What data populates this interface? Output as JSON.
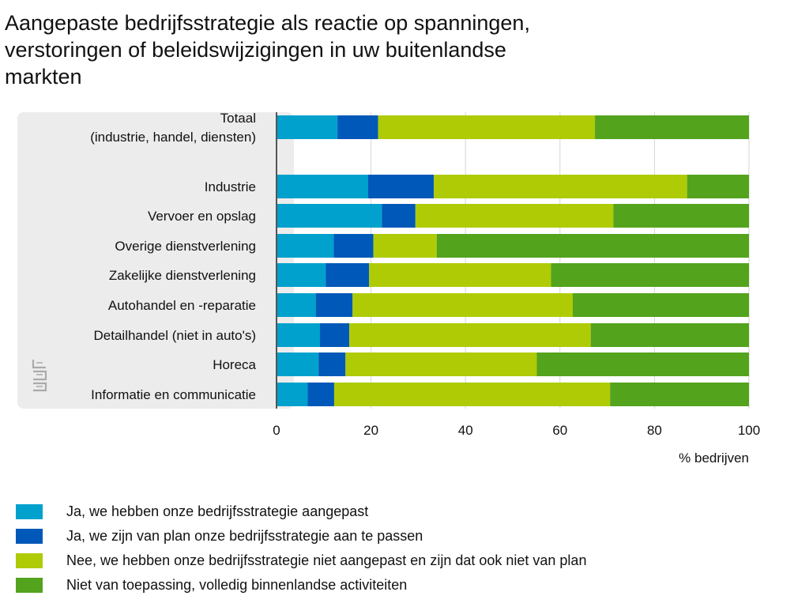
{
  "chart_data": {
    "type": "bar",
    "orientation": "horizontal",
    "stacked": true,
    "title": "Aangepaste bedrijfsstrategie als reactie op spanningen,\nverstoringen of beleidswijzigingen in uw buitenlandse\nmarkten",
    "xlabel": "% bedrijven",
    "ylabel": "",
    "xlim": [
      0,
      100
    ],
    "x_ticks": [
      0,
      20,
      40,
      60,
      80,
      100
    ],
    "grid": true,
    "legend_position": "bottom-left",
    "categories": [
      [
        "Totaal",
        "(industrie, handel, diensten)"
      ],
      [
        "Industrie"
      ],
      [
        "Vervoer en opslag"
      ],
      [
        "Overige dienstverlening"
      ],
      [
        "Zakelijke dienstverlening"
      ],
      [
        "Autohandel en -reparatie"
      ],
      [
        "Detailhandel (niet in auto's)"
      ],
      [
        "Horeca"
      ],
      [
        "Informatie en communicatie"
      ]
    ],
    "series": [
      {
        "name": "Ja, we hebben onze bedrijfsstrategie aangepast",
        "color": "#00a1cd",
        "values": [
          12.9,
          19.4,
          22.3,
          12.1,
          10.4,
          8.3,
          9.2,
          8.9,
          6.6
        ]
      },
      {
        "name": "Ja, we zijn van plan onze bedrijfsstrategie aan te passen",
        "color": "#0058b8",
        "values": [
          8.6,
          13.9,
          7.1,
          8.4,
          9.2,
          7.8,
          6.2,
          5.7,
          5.6
        ]
      },
      {
        "name": "Nee, we hebben onze bedrijfsstrategie niet aangepast en zijn dat ook niet van plan",
        "color": "#afcb05",
        "values": [
          45.9,
          53.6,
          41.9,
          13.4,
          38.5,
          46.6,
          51.1,
          40.5,
          58.4
        ]
      },
      {
        "name": "Niet van toepassing, volledig binnenlandse activiteiten",
        "color": "#53a31d",
        "values": [
          32.6,
          13.1,
          28.7,
          66.1,
          41.9,
          37.3,
          33.5,
          44.9,
          29.4
        ]
      }
    ]
  },
  "colors": {
    "panel": "#ececec",
    "grid": "#d6d6d6",
    "axis": "#555555",
    "logo": "#aaaaaa"
  },
  "logo_icon": "cbs-logo-icon"
}
